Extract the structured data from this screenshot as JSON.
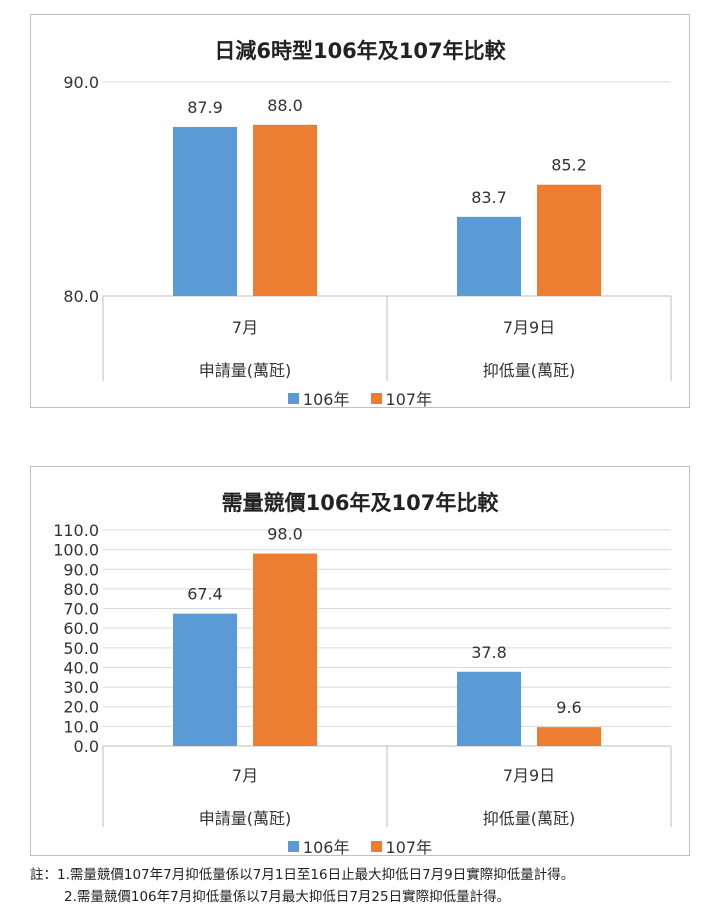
{
  "colors": {
    "series_106": "#5b9bd5",
    "series_107": "#ed7d31",
    "grid": "#d9d9d9",
    "axis": "#bfbfbf"
  },
  "chart_data": [
    {
      "type": "bar",
      "title": "日減6時型106年及107年比較",
      "categories": [
        {
          "top": "7月",
          "bottom": "申請量(萬瓩)"
        },
        {
          "top": "7月9日",
          "bottom": "抑低量(萬瓩)"
        }
      ],
      "series": [
        {
          "name": "106年",
          "values": [
            87.9,
            83.7
          ]
        },
        {
          "name": "107年",
          "values": [
            88.0,
            85.2
          ]
        }
      ],
      "ylim": [
        80.0,
        90.0
      ],
      "yticks": [
        "90.0",
        "80.0"
      ],
      "grid": true,
      "legend": "bottom"
    },
    {
      "type": "bar",
      "title": "需量競價106年及107年比較",
      "categories": [
        {
          "top": "7月",
          "bottom": "申請量(萬瓩)"
        },
        {
          "top": "7月9日",
          "bottom": "抑低量(萬瓩)"
        }
      ],
      "series": [
        {
          "name": "106年",
          "values": [
            67.4,
            37.8
          ]
        },
        {
          "name": "107年",
          "values": [
            98.0,
            9.6
          ]
        }
      ],
      "ylim": [
        0.0,
        110.0
      ],
      "yticks": [
        "110.0",
        "100.0",
        "90.0",
        "80.0",
        "70.0",
        "60.0",
        "50.0",
        "40.0",
        "30.0",
        "20.0",
        "10.0",
        "0.0"
      ],
      "grid": true,
      "legend": "bottom"
    }
  ],
  "footnotes": {
    "line1": "註：1.需量競價107年7月抑低量係以7月1日至16日止最大抑低日7月9日實際抑低量計得。",
    "line2": "2.需量競價106年7月抑低量係以7月最大抑低日7月25日實際抑低量計得。"
  }
}
